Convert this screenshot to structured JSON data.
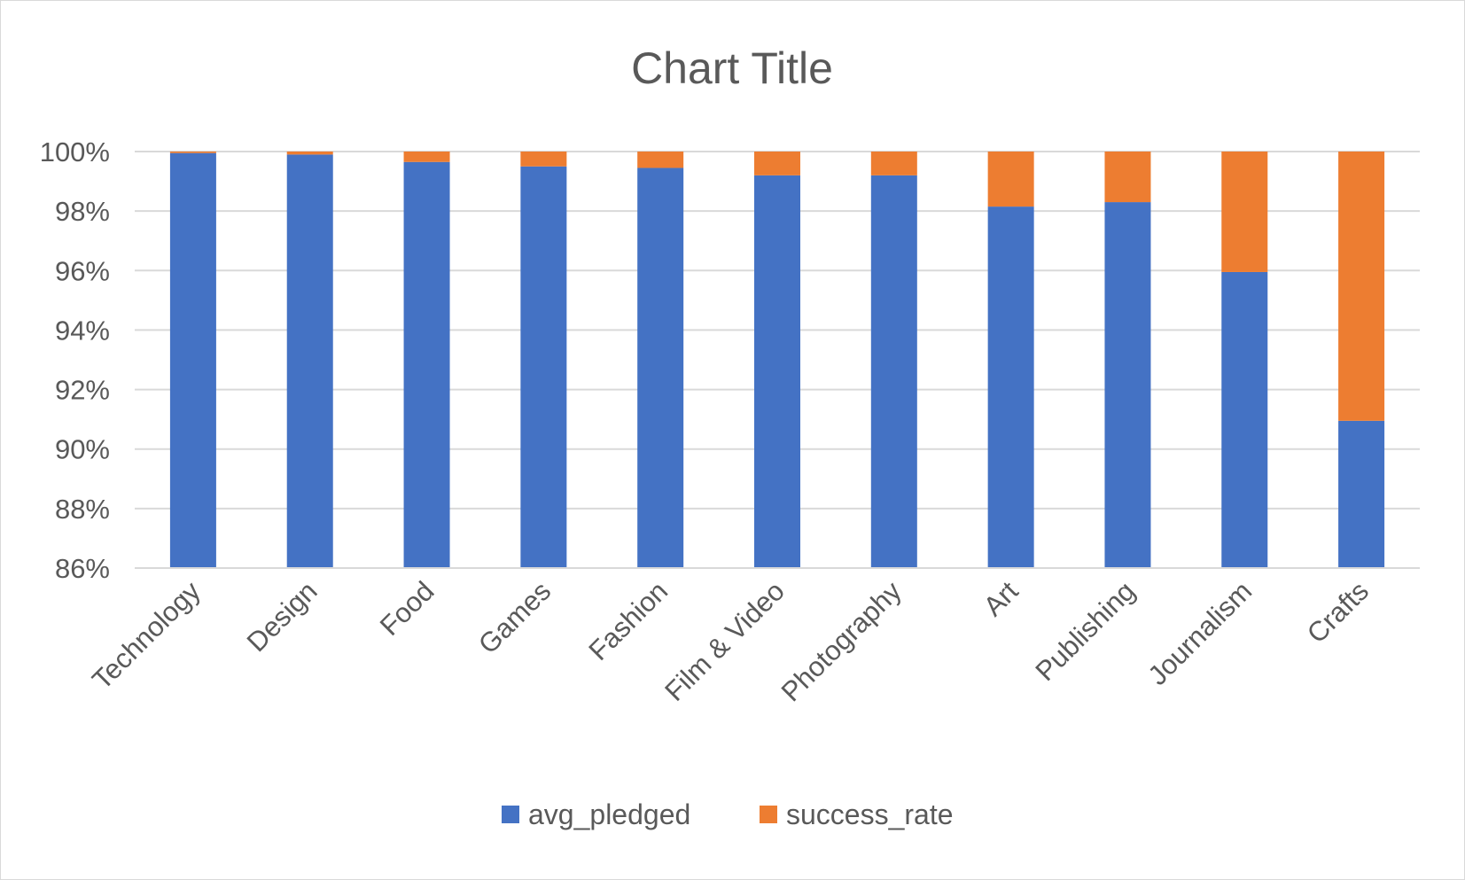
{
  "chart_data": {
    "type": "bar",
    "stacked": "percent",
    "title": "Chart Title",
    "categories": [
      "Technology",
      "Design",
      "Food",
      "Games",
      "Fashion",
      "Film & Video",
      "Photography",
      "Art",
      "Publishing",
      "Journalism",
      "Crafts"
    ],
    "series": [
      {
        "name": "avg_pledged",
        "color": "#4472C4",
        "values": [
          99.95,
          99.9,
          99.65,
          99.5,
          99.45,
          99.2,
          99.2,
          98.15,
          98.3,
          95.95,
          90.95
        ]
      },
      {
        "name": "success_rate",
        "color": "#ED7D31",
        "values": [
          0.05,
          0.1,
          0.35,
          0.5,
          0.55,
          0.8,
          0.8,
          1.85,
          1.7,
          4.05,
          9.05
        ]
      }
    ],
    "ylim": [
      86,
      100
    ],
    "yticks": [
      "86%",
      "88%",
      "90%",
      "92%",
      "94%",
      "96%",
      "98%",
      "100%"
    ],
    "grid": true,
    "legend_position": "bottom"
  }
}
